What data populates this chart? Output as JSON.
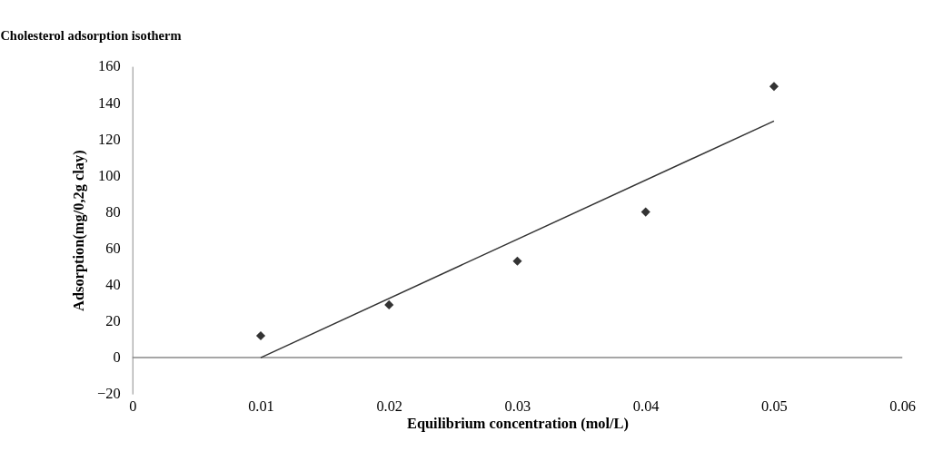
{
  "chart_data": {
    "type": "scatter",
    "title": "Cholesterol adsorption isotherm",
    "xlabel": "Equilibrium  concentration (mol/L)",
    "ylabel": "Adsorption(mg/0,2g clay)",
    "xlim": [
      0,
      0.06
    ],
    "xticks": [
      0,
      0.01,
      0.02,
      0.03,
      0.04,
      0.05,
      0.06
    ],
    "ylim": [
      -20,
      160
    ],
    "yticks": [
      -20,
      0,
      20,
      40,
      60,
      80,
      100,
      120,
      140,
      160
    ],
    "grid": false,
    "series": [
      {
        "marker": "diamond",
        "color": "#333333",
        "x": [
          0.01,
          0.02,
          0.03,
          0.04,
          0.05
        ],
        "values": [
          12,
          29,
          53,
          80,
          149
        ]
      },
      {
        "type": "line",
        "line_style": "solid",
        "color": "#333333",
        "x": [
          0.01,
          0.05
        ],
        "values": [
          0,
          130
        ]
      }
    ]
  }
}
